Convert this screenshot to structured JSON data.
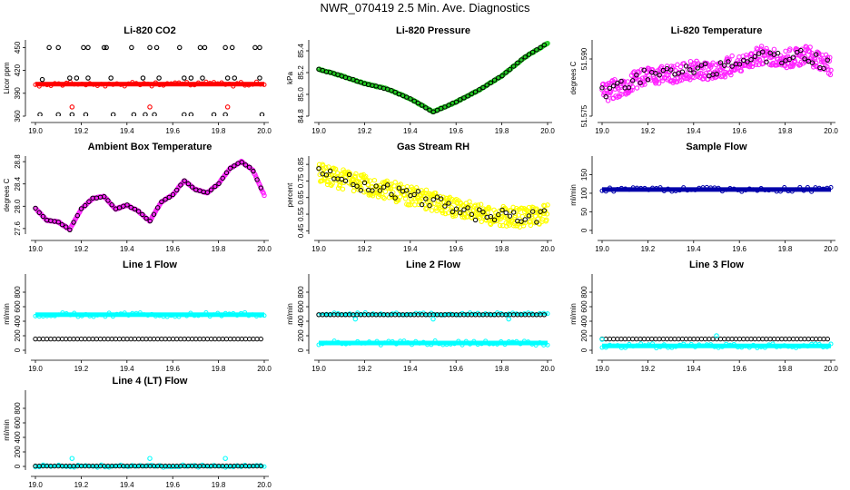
{
  "title": "NWR_070419  2.5 Min. Ave. Diagnostics",
  "colors": {
    "red": "#ff0000",
    "green": "#22cc22",
    "magenta": "#ff22ff",
    "yellow": "#ffff00",
    "blue": "#0000aa",
    "cyan": "#00ffff",
    "black": "#000000"
  },
  "chart_data": [
    {
      "type": "scatter",
      "title": "Li-820 CO2",
      "ylabel": "Licor ppm",
      "xlim": [
        19.0,
        20.0
      ],
      "ylim": [
        360,
        460
      ],
      "xticks": [
        "19.0",
        "19.2",
        "19.4",
        "19.6",
        "19.8",
        "20.0"
      ],
      "yticks": [
        360,
        390,
        420,
        450
      ],
      "series": [
        {
          "name": "co2",
          "color": "red",
          "style": "band",
          "x": [
            19.0,
            20.0
          ],
          "y": [
            402,
            402
          ]
        },
        {
          "name": "outliers_high",
          "color": "black",
          "style": "points",
          "x": [
            19.06,
            19.1,
            19.21,
            19.23,
            19.3,
            19.31,
            19.42,
            19.5,
            19.53,
            19.63,
            19.72,
            19.74,
            19.83,
            19.86,
            19.96,
            19.98
          ],
          "y": [
            450,
            450,
            450,
            450,
            450,
            450,
            450,
            450,
            450,
            450,
            450,
            450,
            450,
            450,
            450,
            450
          ]
        },
        {
          "name": "outliers_mid",
          "color": "black",
          "style": "points",
          "x": [
            19.03,
            19.15,
            19.18,
            19.23,
            19.33,
            19.47,
            19.54,
            19.65,
            19.68,
            19.73,
            19.84,
            19.87,
            19.98
          ],
          "y": [
            408,
            410,
            410,
            410,
            410,
            410,
            410,
            410,
            410,
            410,
            410,
            410,
            410
          ]
        },
        {
          "name": "outliers_low",
          "color": "black",
          "style": "points",
          "x": [
            19.02,
            19.1,
            19.16,
            19.22,
            19.34,
            19.43,
            19.48,
            19.52,
            19.65,
            19.68,
            19.78,
            19.83,
            19.99
          ],
          "y": [
            362,
            362,
            362,
            362,
            362,
            362,
            362,
            362,
            362,
            362,
            362,
            362,
            362
          ]
        },
        {
          "name": "outliers_red",
          "color": "red",
          "style": "points",
          "x": [
            19.16,
            19.5,
            19.84
          ],
          "y": [
            372,
            372,
            372
          ]
        }
      ]
    },
    {
      "type": "scatter",
      "title": "Li-820 Pressure",
      "ylabel": "kPa",
      "xlim": [
        19.0,
        20.0
      ],
      "ylim": [
        84.8,
        85.5
      ],
      "xticks": [
        "19.0",
        "19.2",
        "19.4",
        "19.6",
        "19.8",
        "20.0"
      ],
      "yticks": [
        "84.8",
        "85.0",
        "85.2",
        "85.4"
      ],
      "series": [
        {
          "name": "pressure",
          "color": "green",
          "style": "trend",
          "black_overlay": true,
          "x": [
            19.0,
            19.1,
            19.2,
            19.3,
            19.4,
            19.5,
            19.6,
            19.7,
            19.8,
            19.9,
            20.0
          ],
          "y": [
            85.23,
            85.17,
            85.1,
            85.05,
            84.96,
            84.84,
            84.93,
            85.04,
            85.17,
            85.34,
            85.47
          ]
        }
      ]
    },
    {
      "type": "scatter",
      "title": "Li-820 Temperature",
      "ylabel": "degrees C",
      "xlim": [
        19.0,
        20.0
      ],
      "ylim": [
        51.575,
        51.595
      ],
      "xticks": [
        "19.0",
        "19.2",
        "19.4",
        "19.6",
        "19.8",
        "20.0"
      ],
      "yticks": [
        "51.575",
        "51.590"
      ],
      "series": [
        {
          "name": "temperature",
          "color": "magenta",
          "style": "noisy",
          "spread": 0.005,
          "black_overlay": true,
          "x": [
            19.0,
            19.1,
            19.2,
            19.3,
            19.4,
            19.5,
            19.6,
            19.7,
            19.8,
            19.9,
            20.0
          ],
          "y": [
            51.581,
            51.583,
            51.586,
            51.586,
            51.587,
            51.587,
            51.589,
            51.591,
            51.59,
            51.591,
            51.588
          ]
        }
      ]
    },
    {
      "type": "scatter",
      "title": "Ambient Box Temperature",
      "ylabel": "degrees C",
      "xlim": [
        19.0,
        20.0
      ],
      "ylim": [
        27.5,
        28.9
      ],
      "xticks": [
        "19.0",
        "19.2",
        "19.4",
        "19.6",
        "19.8",
        "20.0"
      ],
      "yticks": [
        "27.6",
        "28.0",
        "28.4",
        "28.8"
      ],
      "series": [
        {
          "name": "ambient",
          "color": "magenta",
          "style": "trend",
          "black_overlay": true,
          "x": [
            19.0,
            19.05,
            19.1,
            19.15,
            19.2,
            19.25,
            19.3,
            19.35,
            19.4,
            19.45,
            19.5,
            19.55,
            19.6,
            19.65,
            19.7,
            19.75,
            19.8,
            19.85,
            19.9,
            19.95,
            20.0
          ],
          "y": [
            27.96,
            27.75,
            27.72,
            27.58,
            27.95,
            28.14,
            28.18,
            27.95,
            28.02,
            27.91,
            27.73,
            28.08,
            28.2,
            28.46,
            28.3,
            28.24,
            28.4,
            28.68,
            28.8,
            28.65,
            28.2
          ]
        }
      ]
    },
    {
      "type": "scatter",
      "title": "Gas Stream RH",
      "ylabel": "percent",
      "xlim": [
        19.0,
        20.0
      ],
      "ylim": [
        0.43,
        0.9
      ],
      "xticks": [
        "19.0",
        "19.2",
        "19.4",
        "19.6",
        "19.8",
        "20.0"
      ],
      "yticks": [
        "0.45",
        "0.55",
        "0.65",
        "0.75",
        "0.85"
      ],
      "series": [
        {
          "name": "rh",
          "color": "yellow",
          "style": "noisy",
          "spread": 0.12,
          "black_overlay": true,
          "x": [
            19.0,
            19.1,
            19.2,
            19.3,
            19.4,
            19.5,
            19.6,
            19.7,
            19.8,
            19.9,
            20.0
          ],
          "y": [
            0.8,
            0.76,
            0.73,
            0.7,
            0.66,
            0.63,
            0.59,
            0.55,
            0.54,
            0.53,
            0.55
          ]
        }
      ]
    },
    {
      "type": "scatter",
      "title": "Sample Flow",
      "ylabel": "ml/min",
      "xlim": [
        19.0,
        20.0
      ],
      "ylim": [
        -10,
        200
      ],
      "xticks": [
        "19.0",
        "19.2",
        "19.4",
        "19.6",
        "19.8",
        "20.0"
      ],
      "yticks": [
        0,
        50,
        100,
        150
      ],
      "series": [
        {
          "name": "sample_flow",
          "color": "blue",
          "style": "band",
          "x": [
            19.0,
            20.0
          ],
          "y": [
            110,
            110
          ]
        }
      ]
    },
    {
      "type": "scatter",
      "title": "Line 1 Flow",
      "ylabel": "ml/min",
      "xlim": [
        19.0,
        20.0
      ],
      "ylim": [
        -50,
        1050
      ],
      "xticks": [
        "19.0",
        "19.2",
        "19.4",
        "19.6",
        "19.8",
        "20.0"
      ],
      "yticks": [
        0,
        200,
        400,
        600,
        800
      ],
      "series": [
        {
          "name": "cyan",
          "color": "cyan",
          "style": "band",
          "x": [
            19.0,
            20.0
          ],
          "y": [
            490,
            490
          ]
        },
        {
          "name": "black",
          "color": "black",
          "style": "line-circles",
          "x": [
            19.0,
            20.0
          ],
          "y": [
            155,
            155
          ]
        }
      ]
    },
    {
      "type": "scatter",
      "title": "Line 2 Flow",
      "ylabel": "ml/min",
      "xlim": [
        19.0,
        20.0
      ],
      "ylim": [
        -50,
        1050
      ],
      "xticks": [
        "19.0",
        "19.2",
        "19.4",
        "19.6",
        "19.8",
        "20.0"
      ],
      "yticks": [
        0,
        200,
        400,
        600,
        800
      ],
      "series": [
        {
          "name": "cyan_high",
          "color": "cyan",
          "style": "band-thin",
          "x": [
            19.0,
            20.0
          ],
          "y": [
            500,
            500
          ]
        },
        {
          "name": "cyan_low",
          "color": "cyan",
          "style": "band",
          "x": [
            19.0,
            20.0
          ],
          "y": [
            100,
            100
          ]
        },
        {
          "name": "black",
          "color": "black",
          "style": "line-circles",
          "x": [
            19.0,
            20.0
          ],
          "y": [
            490,
            490
          ]
        },
        {
          "name": "cyan_dips",
          "color": "cyan",
          "style": "points",
          "x": [
            19.16,
            19.5,
            19.83
          ],
          "y": [
            430,
            430,
            430
          ]
        }
      ]
    },
    {
      "type": "scatter",
      "title": "Line 3 Flow",
      "ylabel": "ml/min",
      "xlim": [
        19.0,
        20.0
      ],
      "ylim": [
        -50,
        1050
      ],
      "xticks": [
        "19.0",
        "19.2",
        "19.4",
        "19.6",
        "19.8",
        "20.0"
      ],
      "yticks": [
        0,
        200,
        400,
        600,
        800
      ],
      "series": [
        {
          "name": "cyan",
          "color": "cyan",
          "style": "band",
          "x": [
            19.0,
            20.0
          ],
          "y": [
            60,
            60
          ]
        },
        {
          "name": "black",
          "color": "black",
          "style": "line-circles",
          "x": [
            19.0,
            20.0
          ],
          "y": [
            155,
            155
          ]
        },
        {
          "name": "cyan_spikes",
          "color": "cyan",
          "style": "points",
          "x": [
            19.0,
            19.5
          ],
          "y": [
            150,
            200
          ]
        }
      ]
    },
    {
      "type": "scatter",
      "title": "Line 4 (LT) Flow",
      "ylabel": "ml/min",
      "xlim": [
        19.0,
        20.0
      ],
      "ylim": [
        -50,
        1050
      ],
      "xticks": [
        "19.0",
        "19.2",
        "19.4",
        "19.6",
        "19.8",
        "20.0"
      ],
      "yticks": [
        0,
        200,
        400,
        600,
        800
      ],
      "series": [
        {
          "name": "cyan",
          "color": "cyan",
          "style": "band-thin",
          "x": [
            19.0,
            20.0
          ],
          "y": [
            5,
            5
          ]
        },
        {
          "name": "black",
          "color": "black",
          "style": "line-circles",
          "x": [
            19.0,
            20.0
          ],
          "y": [
            5,
            5
          ]
        },
        {
          "name": "cyan_spikes",
          "color": "cyan",
          "style": "points",
          "x": [
            19.16,
            19.5,
            19.83
          ],
          "y": [
            110,
            110,
            110
          ]
        }
      ]
    }
  ]
}
